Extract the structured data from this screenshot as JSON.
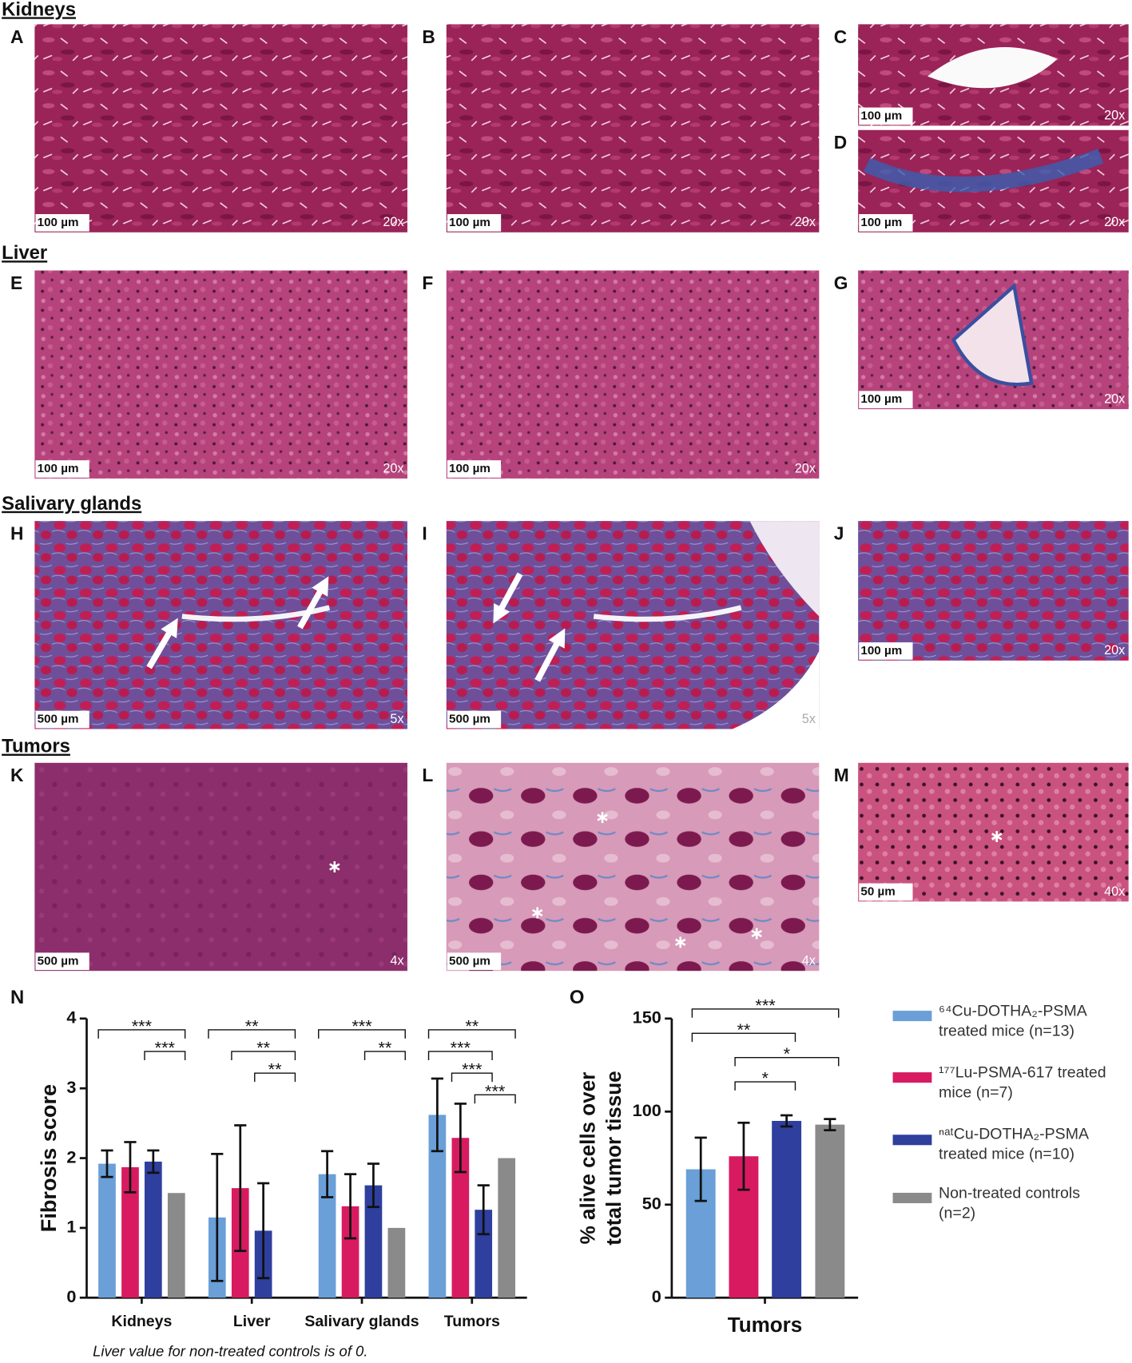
{
  "sections": [
    {
      "title": "Kidneys",
      "panels": [
        {
          "letter": "A",
          "scale": "100 µm",
          "magnification": "20x"
        },
        {
          "letter": "B",
          "scale": "100 µm",
          "magnification": "20x"
        },
        {
          "letter": "C",
          "scale": "100 µm",
          "magnification": "20x"
        },
        {
          "letter": "D",
          "scale": "100 µm",
          "magnification": "20x"
        }
      ]
    },
    {
      "title": "Liver",
      "panels": [
        {
          "letter": "E",
          "scale": "100 µm",
          "magnification": "20x"
        },
        {
          "letter": "F",
          "scale": "100 µm",
          "magnification": "20x"
        },
        {
          "letter": "G",
          "scale": "100 µm",
          "magnification": "20x"
        }
      ]
    },
    {
      "title": "Salivary glands",
      "panels": [
        {
          "letter": "H",
          "scale": "500 µm",
          "magnification": "5x"
        },
        {
          "letter": "I",
          "scale": "500 µm",
          "magnification": "5x"
        },
        {
          "letter": "J",
          "scale": "100 µm",
          "magnification": "20x"
        }
      ]
    },
    {
      "title": "Tumors",
      "panels": [
        {
          "letter": "K",
          "scale": "500 µm",
          "magnification": "4x"
        },
        {
          "letter": "L",
          "scale": "500 µm",
          "magnification": "4x"
        },
        {
          "letter": "M",
          "scale": "50 µm",
          "magnification": "40x"
        }
      ]
    }
  ],
  "chart_data": [
    {
      "type": "bar",
      "panel": "N",
      "ylabel": "Fibrosis score",
      "categories": [
        "Kidneys",
        "Liver",
        "Salivary glands",
        "Tumors"
      ],
      "ylim": [
        0,
        4
      ],
      "yticks": [
        0,
        1,
        2,
        3,
        4
      ],
      "series": [
        {
          "name": "⁶⁴Cu-DOTHA₂-PSMA treated mice (n=13)",
          "color": "#6a9fd8",
          "values": [
            1.92,
            1.15,
            1.77,
            2.62
          ],
          "errors": [
            0.19,
            0.91,
            0.33,
            0.52
          ]
        },
        {
          "name": "¹⁷⁷Lu-PSMA-617 treated mice (n=7)",
          "color": "#d81b60",
          "values": [
            1.87,
            1.57,
            1.31,
            2.29
          ],
          "errors": [
            0.36,
            0.9,
            0.46,
            0.49
          ]
        },
        {
          "name": "ⁿᵃᵗCu-DOTHA₂-PSMA treated mice (n=10)",
          "color": "#2e3f9e",
          "values": [
            1.95,
            0.96,
            1.61,
            1.26
          ],
          "errors": [
            0.16,
            0.68,
            0.31,
            0.35
          ]
        },
        {
          "name": "Non-treated controls (n=2)",
          "color": "#8a8a8a",
          "values": [
            1.5,
            0,
            1.0,
            2.0
          ],
          "errors": [
            null,
            null,
            null,
            null
          ]
        }
      ],
      "brackets": [
        {
          "category": 0,
          "from": 0,
          "to": 3,
          "label": "***"
        },
        {
          "category": 0,
          "from": 2,
          "to": 3,
          "label": "***"
        },
        {
          "category": 1,
          "from": 0,
          "to": 3,
          "label": "**"
        },
        {
          "category": 1,
          "from": 1,
          "to": 3,
          "label": "**"
        },
        {
          "category": 1,
          "from": 2,
          "to": 3,
          "label": "**"
        },
        {
          "category": 2,
          "from": 0,
          "to": 3,
          "label": "***"
        },
        {
          "category": 2,
          "from": 2,
          "to": 3,
          "label": "**"
        },
        {
          "category": 3,
          "from": 0,
          "to": 3,
          "label": "**"
        },
        {
          "category": 3,
          "from": 0,
          "to": 2,
          "label": "***"
        },
        {
          "category": 3,
          "from": 1,
          "to": 2,
          "label": "***"
        },
        {
          "category": 3,
          "from": 2,
          "to": 3,
          "label": "***"
        }
      ],
      "note": "Liver value for non-treated controls is of 0."
    },
    {
      "type": "bar",
      "panel": "O",
      "ylabel": [
        "% alive cells over",
        "total tumor tissue"
      ],
      "categories": [
        "Tumors"
      ],
      "ylim": [
        0,
        150
      ],
      "yticks": [
        0,
        50,
        100,
        150
      ],
      "series": [
        {
          "color": "#6a9fd8",
          "values": [
            69
          ],
          "errors": [
            17
          ]
        },
        {
          "color": "#d81b60",
          "values": [
            76
          ],
          "errors": [
            18
          ]
        },
        {
          "color": "#2e3f9e",
          "values": [
            95
          ],
          "errors": [
            3
          ]
        },
        {
          "color": "#8a8a8a",
          "values": [
            93
          ],
          "errors": [
            3
          ]
        }
      ],
      "brackets": [
        {
          "category": 0,
          "from": 0,
          "to": 3,
          "label": "***"
        },
        {
          "category": 0,
          "from": 0,
          "to": 2,
          "label": "**"
        },
        {
          "category": 0,
          "from": 1,
          "to": 3,
          "label": "*"
        },
        {
          "category": 0,
          "from": 1,
          "to": 2,
          "label": "*"
        }
      ]
    }
  ]
}
